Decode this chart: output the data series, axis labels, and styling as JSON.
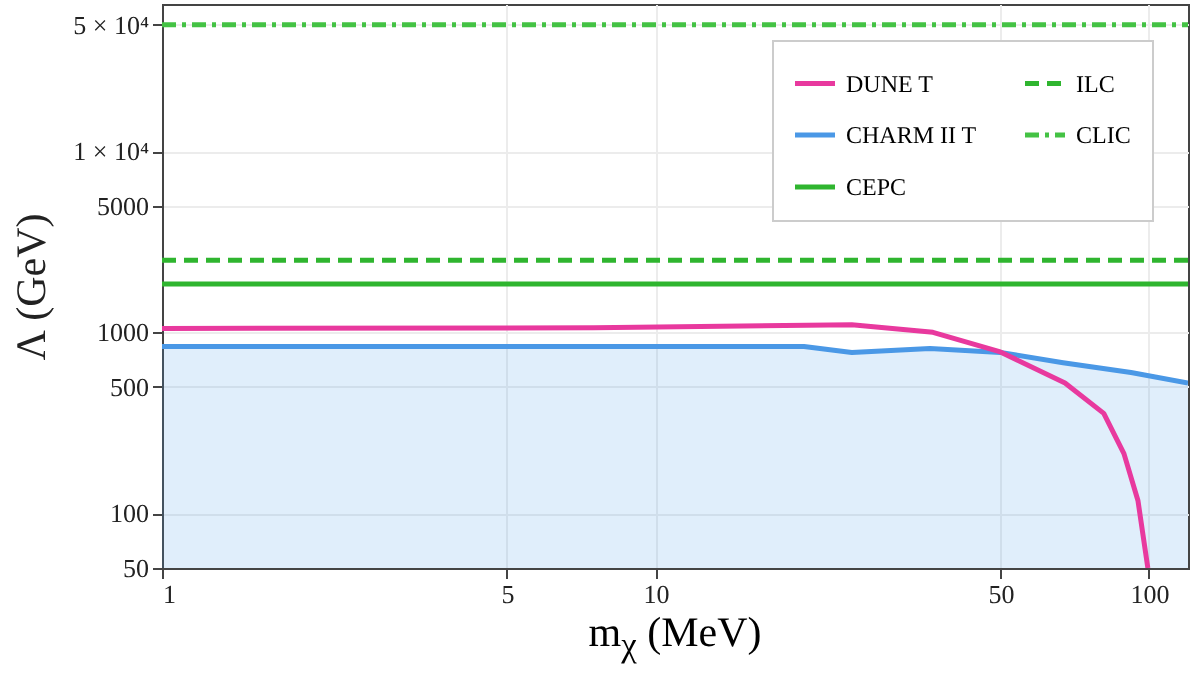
{
  "chart_data": {
    "type": "line",
    "xlabel": "m$_{χ}$ (MeV)",
    "ylabel": "Λ (GeV)",
    "log": "xy",
    "grid": true,
    "legend": "top right",
    "xlim": [
      1,
      120
    ],
    "xticks": [
      1,
      5,
      10,
      50,
      100
    ],
    "ylim": [
      50,
      65000
    ],
    "yticks": [
      50,
      100,
      500,
      1000,
      5000,
      {
        "value": 10000,
        "label": "1 × 10⁴"
      },
      {
        "value": 50000,
        "label": "5 × 10⁴"
      }
    ],
    "series": [
      {
        "name": "DUNE T",
        "color": "#e8399e",
        "line_style": "solid",
        "x": [
          1,
          7.5,
          25,
          36.5,
          50,
          67.6,
          81,
          89,
          95,
          99.5
        ],
        "values": [
          1050,
          1060,
          1100,
          1000,
          780,
          525,
          357,
          214,
          118,
          50
        ]
      },
      {
        "name": "CHARM II T",
        "type": "area",
        "color": "#4a98e6",
        "line_style": "solid",
        "x": [
          1,
          10,
          20,
          25,
          36,
          50,
          67,
          92,
          120
        ],
        "values": [
          835,
          835,
          835,
          775,
          815,
          775,
          680,
          600,
          525
        ]
      },
      {
        "name": "CEPC",
        "color": "#2fb52f",
        "line_style": "solid",
        "x": [
          1,
          120
        ],
        "values": [
          1850,
          1850
        ]
      },
      {
        "name": "ILC",
        "color": "#2fb52f",
        "line_style": "dashed",
        "x": [
          1,
          120
        ],
        "values": [
          2500,
          2500
        ]
      },
      {
        "name": "CLIC",
        "color": "#44c244",
        "line_style": "dashdot",
        "x": [
          1,
          120
        ],
        "values": [
          50000,
          50000
        ]
      }
    ]
  }
}
